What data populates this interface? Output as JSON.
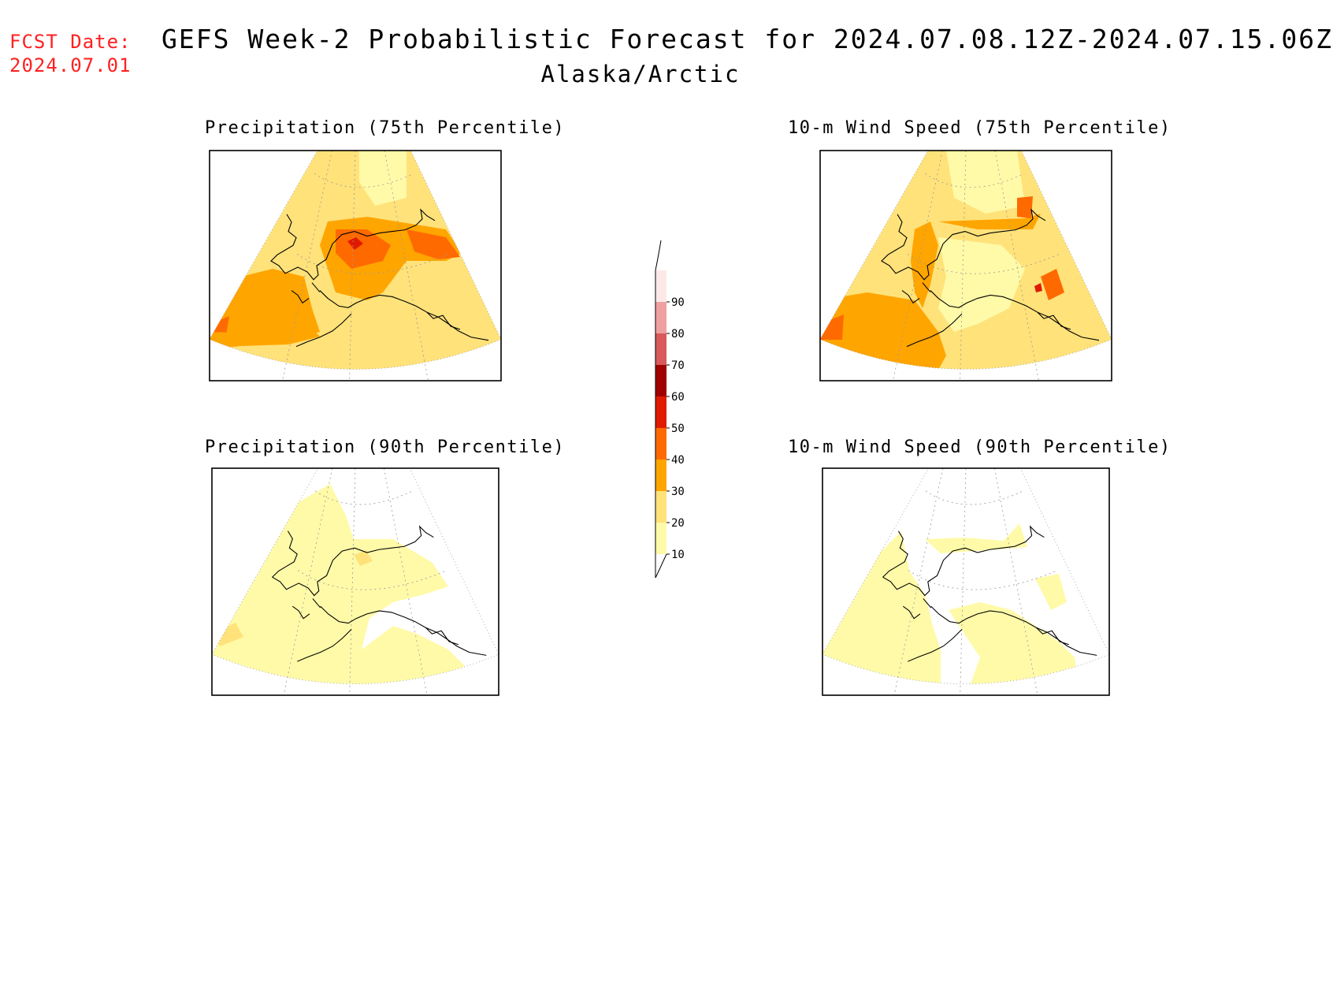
{
  "header": {
    "fcst_label": "FCST Date:",
    "fcst_date": "2024.07.01",
    "title": "GEFS Week-2 Probabilistic Forecast for 2024.07.08.12Z-2024.07.15.06Z",
    "region": "Alaska/Arctic"
  },
  "panels": [
    {
      "title": "Precipitation (75th Percentile)",
      "level": "high-precip"
    },
    {
      "title": "10-m Wind Speed (75th Percentile)",
      "level": "high-wind"
    },
    {
      "title": "Precipitation (90th Percentile)",
      "level": "low-precip"
    },
    {
      "title": "10-m Wind Speed (90th Percentile)",
      "level": "low-wind"
    }
  ],
  "colorbar": {
    "labels": [
      "10",
      "20",
      "30",
      "40",
      "50",
      "60",
      "70",
      "80",
      "90"
    ],
    "colors": [
      "#fffaa8",
      "#ffe27a",
      "#ffa500",
      "#ff6a00",
      "#e01a00",
      "#a00000",
      "#d85a5a",
      "#f0a0a0",
      "#fde8e8"
    ]
  }
}
